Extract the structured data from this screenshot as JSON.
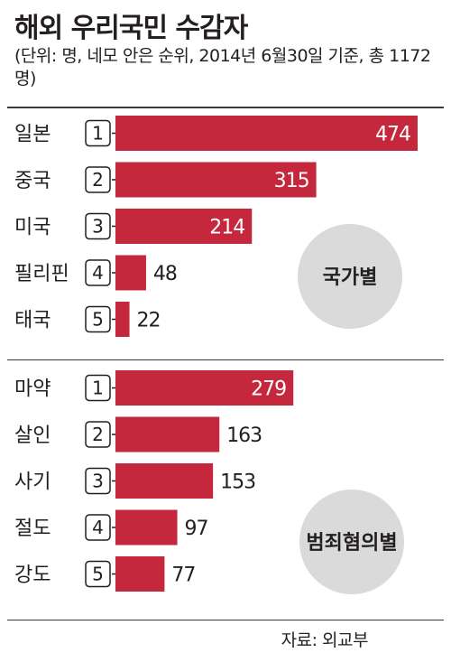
{
  "header": {
    "title": "해외 우리국민 수감자",
    "subtitle": "(단위: 명, 네모 안은 순위, 2014년 6월30일 기준, 총 1172명)"
  },
  "source": "자료: 외교부",
  "colors": {
    "bar": "#c5283d",
    "circle": "#dadadb",
    "text": "#231f20"
  },
  "chart_data": [
    {
      "type": "bar",
      "orientation": "horizontal",
      "badge": "국가별",
      "categories": [
        "일본",
        "중국",
        "미국",
        "필리핀",
        "태국"
      ],
      "ranks": [
        "1",
        "2",
        "3",
        "4",
        "5"
      ],
      "values": [
        474,
        315,
        214,
        48,
        22
      ],
      "unit": "명"
    },
    {
      "type": "bar",
      "orientation": "horizontal",
      "badge": "범죄혐의별",
      "categories": [
        "마약",
        "살인",
        "사기",
        "절도",
        "강도"
      ],
      "ranks": [
        "1",
        "2",
        "3",
        "4",
        "5"
      ],
      "values": [
        279,
        163,
        153,
        97,
        77
      ],
      "unit": "명"
    }
  ]
}
